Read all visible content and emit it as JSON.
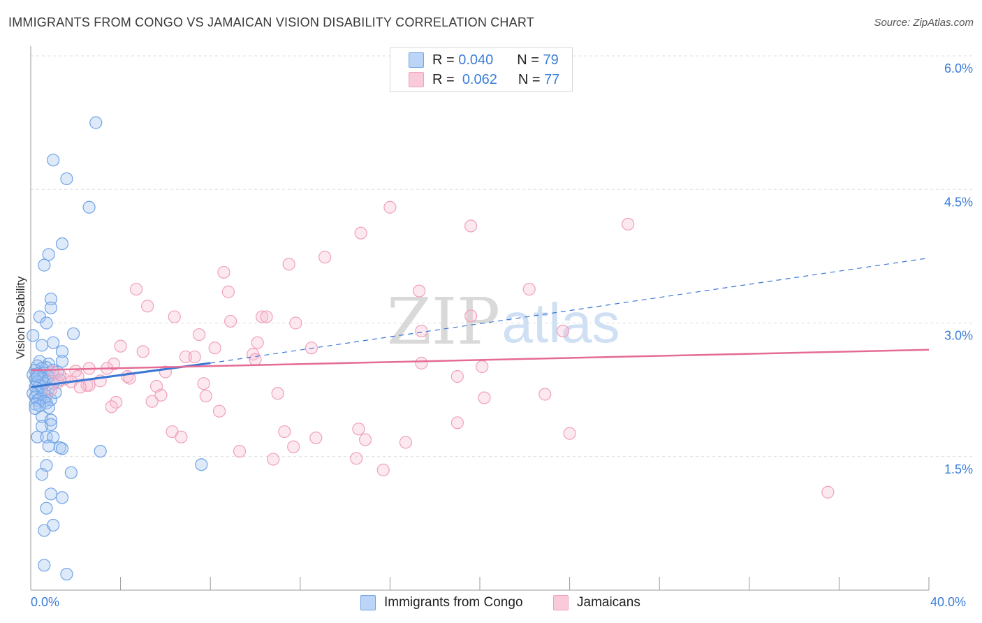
{
  "title": "IMMIGRANTS FROM CONGO VS JAMAICAN VISION DISABILITY CORRELATION CHART",
  "source": "Source: ZipAtlas.com",
  "legend_top": {
    "rows": [
      {
        "r_label": "R =",
        "r_value": "0.040",
        "n_label": "N =",
        "n_value": "79"
      },
      {
        "r_label": "R =",
        "r_value": "0.062",
        "n_label": "N =",
        "n_value": "77"
      }
    ]
  },
  "watermark": {
    "zip": "ZIP",
    "atlas": "atlas"
  },
  "colors": {
    "blue": "#6fa3e6",
    "blue_line": "#3a76d4",
    "pink": "#f0a0bc",
    "pink_line": "#e46b95",
    "tick_text": "#3b7dd8"
  },
  "chart_data": {
    "type": "scatter",
    "title": "IMMIGRANTS FROM CONGO VS JAMAICAN VISION DISABILITY CORRELATION CHART",
    "xlabel": "",
    "ylabel": "Vision Disability",
    "xlim": [
      0,
      40
    ],
    "ylim": [
      0,
      6.2
    ],
    "x_tick_labels": [
      "0.0%",
      "40.0%"
    ],
    "y_ticks": [
      1.5,
      3.0,
      4.5,
      6.0
    ],
    "y_tick_labels": [
      "1.5%",
      "3.0%",
      "4.5%",
      "6.0%"
    ],
    "grid": true,
    "legend_position": "bottom",
    "series": [
      {
        "name": "Immigrants from Congo",
        "color": "#6fa3e6",
        "R": 0.04,
        "N": 79,
        "trend": {
          "x0": 0,
          "y0": 2.28,
          "x1": 8.0,
          "y1": 2.55,
          "dashed_to_x": 40.0,
          "dashed_to_y": 3.73
        },
        "points": [
          [
            2.9,
            5.25
          ],
          [
            1.0,
            4.83
          ],
          [
            1.6,
            4.62
          ],
          [
            2.6,
            4.3
          ],
          [
            1.4,
            3.89
          ],
          [
            0.8,
            3.77
          ],
          [
            0.6,
            3.65
          ],
          [
            0.9,
            3.27
          ],
          [
            0.9,
            3.17
          ],
          [
            0.4,
            3.07
          ],
          [
            0.7,
            3.0
          ],
          [
            1.9,
            2.88
          ],
          [
            0.1,
            2.86
          ],
          [
            1.0,
            2.78
          ],
          [
            0.5,
            2.75
          ],
          [
            1.4,
            2.68
          ],
          [
            1.4,
            2.57
          ],
          [
            0.4,
            2.57
          ],
          [
            0.8,
            2.54
          ],
          [
            0.3,
            2.52
          ],
          [
            0.7,
            2.5
          ],
          [
            0.5,
            2.49
          ],
          [
            0.2,
            2.47
          ],
          [
            1.0,
            2.47
          ],
          [
            1.2,
            2.45
          ],
          [
            0.6,
            2.44
          ],
          [
            0.3,
            2.43
          ],
          [
            0.4,
            2.42
          ],
          [
            0.1,
            2.42
          ],
          [
            0.8,
            2.4
          ],
          [
            0.5,
            2.38
          ],
          [
            0.2,
            2.37
          ],
          [
            1.3,
            2.36
          ],
          [
            0.7,
            2.35
          ],
          [
            0.3,
            2.34
          ],
          [
            0.6,
            2.33
          ],
          [
            1.0,
            2.32
          ],
          [
            0.4,
            2.3
          ],
          [
            0.2,
            2.28
          ],
          [
            0.8,
            2.26
          ],
          [
            0.5,
            2.24
          ],
          [
            0.3,
            2.22
          ],
          [
            0.1,
            2.21
          ],
          [
            0.6,
            2.2
          ],
          [
            0.7,
            2.18
          ],
          [
            0.2,
            2.17
          ],
          [
            0.4,
            2.15
          ],
          [
            0.9,
            2.14
          ],
          [
            0.3,
            2.13
          ],
          [
            0.6,
            2.12
          ],
          [
            0.7,
            2.1
          ],
          [
            0.2,
            2.09
          ],
          [
            0.4,
            2.07
          ],
          [
            0.8,
            2.05
          ],
          [
            0.2,
            2.04
          ],
          [
            0.5,
            1.95
          ],
          [
            0.9,
            1.91
          ],
          [
            0.9,
            1.86
          ],
          [
            0.5,
            1.84
          ],
          [
            0.3,
            1.72
          ],
          [
            0.7,
            1.72
          ],
          [
            1.0,
            1.72
          ],
          [
            0.8,
            1.62
          ],
          [
            1.3,
            1.6
          ],
          [
            1.4,
            1.59
          ],
          [
            3.1,
            1.56
          ],
          [
            7.6,
            1.41
          ],
          [
            0.7,
            1.4
          ],
          [
            0.5,
            1.3
          ],
          [
            1.8,
            1.32
          ],
          [
            0.9,
            1.08
          ],
          [
            1.4,
            1.04
          ],
          [
            0.7,
            0.92
          ],
          [
            1.0,
            0.73
          ],
          [
            0.6,
            0.67
          ],
          [
            0.6,
            0.28
          ],
          [
            1.6,
            0.18
          ],
          [
            0.3,
            2.4
          ],
          [
            1.1,
            2.22
          ]
        ]
      },
      {
        "name": "Jamaicans",
        "color": "#f0a0bc",
        "R": 0.062,
        "N": 77,
        "trend": {
          "x0": 0,
          "y0": 2.47,
          "x1": 40.0,
          "y1": 2.7
        },
        "points": [
          [
            16.0,
            4.3
          ],
          [
            14.7,
            4.01
          ],
          [
            19.6,
            4.09
          ],
          [
            26.6,
            4.11
          ],
          [
            13.1,
            3.74
          ],
          [
            11.5,
            3.66
          ],
          [
            8.6,
            3.57
          ],
          [
            4.7,
            3.38
          ],
          [
            8.8,
            3.35
          ],
          [
            17.3,
            3.36
          ],
          [
            22.2,
            3.38
          ],
          [
            5.2,
            3.19
          ],
          [
            6.4,
            3.07
          ],
          [
            10.3,
            3.07
          ],
          [
            10.5,
            3.07
          ],
          [
            19.6,
            3.08
          ],
          [
            8.9,
            3.02
          ],
          [
            11.8,
            3.0
          ],
          [
            17.4,
            2.91
          ],
          [
            23.7,
            2.91
          ],
          [
            7.5,
            2.87
          ],
          [
            10.1,
            2.78
          ],
          [
            4.0,
            2.74
          ],
          [
            8.2,
            2.72
          ],
          [
            12.5,
            2.72
          ],
          [
            5.0,
            2.68
          ],
          [
            6.9,
            2.62
          ],
          [
            7.3,
            2.62
          ],
          [
            9.9,
            2.65
          ],
          [
            10.0,
            2.59
          ],
          [
            3.7,
            2.54
          ],
          [
            17.4,
            2.55
          ],
          [
            20.1,
            2.51
          ],
          [
            2.6,
            2.49
          ],
          [
            3.4,
            2.49
          ],
          [
            2.0,
            2.46
          ],
          [
            6.0,
            2.45
          ],
          [
            4.3,
            2.4
          ],
          [
            2.1,
            2.4
          ],
          [
            19.0,
            2.4
          ],
          [
            1.5,
            2.37
          ],
          [
            4.4,
            2.38
          ],
          [
            3.1,
            2.35
          ],
          [
            1.8,
            2.34
          ],
          [
            1.2,
            2.33
          ],
          [
            7.7,
            2.32
          ],
          [
            2.5,
            2.3
          ],
          [
            2.6,
            2.3
          ],
          [
            5.6,
            2.29
          ],
          [
            11.0,
            2.21
          ],
          [
            5.8,
            2.19
          ],
          [
            7.8,
            2.18
          ],
          [
            22.9,
            2.2
          ],
          [
            20.2,
            2.16
          ],
          [
            3.8,
            2.11
          ],
          [
            5.4,
            2.12
          ],
          [
            3.6,
            2.06
          ],
          [
            8.4,
            2.01
          ],
          [
            19.0,
            1.88
          ],
          [
            14.6,
            1.81
          ],
          [
            11.3,
            1.78
          ],
          [
            24.0,
            1.76
          ],
          [
            6.3,
            1.78
          ],
          [
            6.7,
            1.72
          ],
          [
            12.7,
            1.71
          ],
          [
            14.9,
            1.69
          ],
          [
            16.7,
            1.66
          ],
          [
            11.7,
            1.61
          ],
          [
            9.3,
            1.56
          ],
          [
            10.8,
            1.47
          ],
          [
            14.5,
            1.48
          ],
          [
            15.7,
            1.35
          ],
          [
            35.5,
            1.1
          ],
          [
            1.0,
            2.45
          ],
          [
            2.2,
            2.28
          ],
          [
            0.9,
            2.25
          ],
          [
            1.3,
            2.42
          ]
        ]
      }
    ]
  }
}
